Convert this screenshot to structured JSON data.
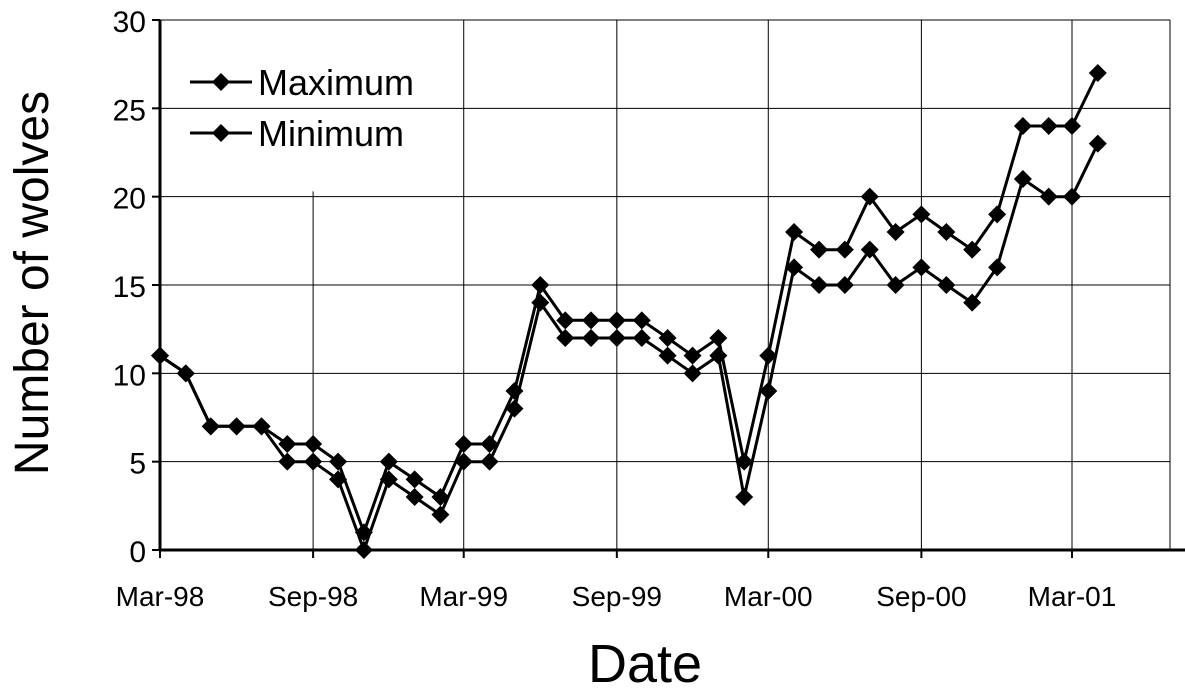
{
  "chart_data": {
    "type": "line",
    "xlabel": "Date",
    "ylabel": "Number of wolves",
    "ylim": [
      0,
      30
    ],
    "yticks": [
      0,
      5,
      10,
      15,
      20,
      25,
      30
    ],
    "xlim": [
      "1998-03-01",
      "2001-09-01"
    ],
    "xtick_labels": [
      "Mar-98",
      "Sep-98",
      "Mar-99",
      "Sep-99",
      "Mar-00",
      "Sep-00",
      "Mar-01"
    ],
    "xtick_dates": [
      "1998-03-01",
      "1998-09-01",
      "1999-03-01",
      "1999-09-01",
      "2000-03-01",
      "2000-09-01",
      "2001-03-01"
    ],
    "grid": true,
    "legend_position": "top-left",
    "x": [
      "1998-03-01",
      "1998-04-01",
      "1998-05-01",
      "1998-06-01",
      "1998-07-01",
      "1998-08-01",
      "1998-09-01",
      "1998-10-01",
      "1998-11-01",
      "1998-12-01",
      "1999-01-01",
      "1999-02-01",
      "1999-03-01",
      "1999-04-01",
      "1999-05-01",
      "1999-06-01",
      "1999-07-01",
      "1999-08-01",
      "1999-09-01",
      "1999-10-01",
      "1999-11-01",
      "1999-12-01",
      "2000-01-01",
      "2000-02-01",
      "2000-03-01",
      "2000-04-01",
      "2000-05-01",
      "2000-06-01",
      "2000-07-01",
      "2000-08-01",
      "2000-09-01",
      "2000-10-01",
      "2000-11-01",
      "2000-12-01",
      "2001-01-01",
      "2001-02-01",
      "2001-03-01",
      "2001-04-01"
    ],
    "series": [
      {
        "name": "Maximum",
        "color": "#000000",
        "values": [
          11,
          10,
          7,
          7,
          7,
          6,
          6,
          5,
          1,
          5,
          4,
          3,
          6,
          6,
          9,
          15,
          13,
          13,
          13,
          13,
          12,
          11,
          12,
          5,
          11,
          18,
          17,
          17,
          20,
          18,
          19,
          18,
          17,
          19,
          24,
          24,
          24,
          27
        ]
      },
      {
        "name": "Minimum",
        "color": "#000000",
        "values": [
          11,
          10,
          7,
          7,
          7,
          5,
          5,
          4,
          0,
          4,
          3,
          2,
          5,
          5,
          8,
          14,
          12,
          12,
          12,
          12,
          11,
          10,
          11,
          3,
          9,
          16,
          15,
          15,
          17,
          15,
          16,
          15,
          14,
          16,
          21,
          20,
          20,
          23
        ]
      }
    ]
  }
}
